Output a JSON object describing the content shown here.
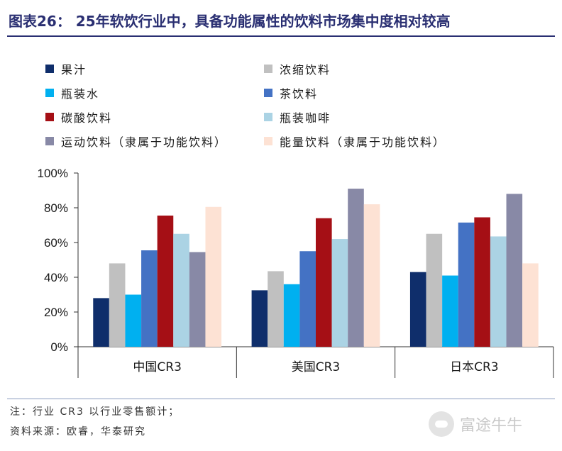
{
  "title": "图表26： 25年软饮行业中，具备功能属性的饮料市场集中度相对较高",
  "chart_data": {
    "type": "bar",
    "categories": [
      "中国CR3",
      "美国CR3",
      "日本CR3"
    ],
    "series": [
      {
        "name": "果汁",
        "color": "#0f2e6b",
        "values": [
          28,
          32.5,
          43
        ]
      },
      {
        "name": "浓缩饮料",
        "color": "#c0c0c0",
        "values": [
          48,
          43.5,
          65
        ]
      },
      {
        "name": "瓶装水",
        "color": "#00b0f0",
        "values": [
          30,
          36,
          41
        ]
      },
      {
        "name": "茶饮料",
        "color": "#4472c4",
        "values": [
          55.5,
          55,
          71.5
        ]
      },
      {
        "name": "碳酸饮料",
        "color": "#a50f15",
        "values": [
          75.5,
          74,
          74.5
        ]
      },
      {
        "name": "瓶装咖啡",
        "color": "#abd3e4",
        "values": [
          65,
          62,
          63.5
        ]
      },
      {
        "name": "运动饮料（隶属于功能饮料）",
        "color": "#8889a6",
        "values": [
          54.5,
          91,
          88
        ]
      },
      {
        "name": "能量饮料（隶属于功能饮料）",
        "color": "#fde2d4",
        "values": [
          80.5,
          82,
          48
        ]
      }
    ],
    "ylim": [
      0,
      100
    ],
    "yticks": [
      "0%",
      "20%",
      "40%",
      "60%",
      "80%",
      "100%"
    ],
    "legend_position": "top",
    "grid": false
  },
  "footer": {
    "note": "注：行业 CR3 以行业零售额计；",
    "source": "资料来源：欧睿，华泰研究"
  },
  "watermark": {
    "text": "富途牛牛"
  }
}
